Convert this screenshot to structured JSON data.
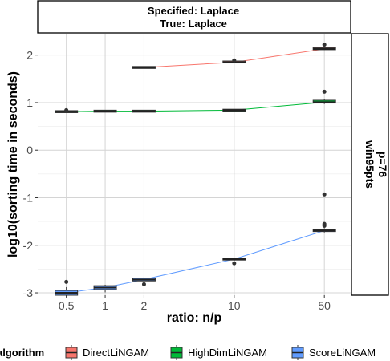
{
  "chart_data": {
    "type": "boxplot",
    "facet_top": [
      "Specified:  Laplace",
      "True: Laplace"
    ],
    "facet_right": [
      "win95pts",
      "p=76"
    ],
    "xlabel": "ratio: n/p",
    "ylabel": "log10(sorting time in seconds)",
    "x_ticks": [
      "0.5",
      "1",
      "2",
      "10",
      "50"
    ],
    "x_scale": "log",
    "y_ticks": [
      -3,
      -2,
      -1,
      0,
      1,
      2
    ],
    "ylim": [
      -3.05,
      2.45
    ],
    "grid": true,
    "legend": {
      "title": "algorithm",
      "position": "bottom",
      "items": [
        "DirectLiNGAM",
        "HighDimLiNGAM",
        "ScoreLiNGAM"
      ]
    },
    "series": [
      {
        "name": "DirectLiNGAM",
        "color": "#F8766D",
        "boxes": [
          {
            "ratio": 2,
            "q1": 1.73,
            "median": 1.74,
            "q3": 1.75,
            "lo": 1.72,
            "hi": 1.76,
            "outliers": []
          },
          {
            "ratio": 10,
            "q1": 1.84,
            "median": 1.85,
            "q3": 1.87,
            "lo": 1.83,
            "hi": 1.88,
            "outliers": [
              1.89
            ]
          },
          {
            "ratio": 50,
            "q1": 2.12,
            "median": 2.13,
            "q3": 2.15,
            "lo": 2.11,
            "hi": 2.17,
            "outliers": [
              2.22
            ]
          }
        ]
      },
      {
        "name": "HighDimLiNGAM",
        "color": "#00BA38",
        "boxes": [
          {
            "ratio": 0.5,
            "q1": 0.8,
            "median": 0.81,
            "q3": 0.82,
            "lo": 0.79,
            "hi": 0.83,
            "outliers": [
              0.84
            ]
          },
          {
            "ratio": 1,
            "q1": 0.81,
            "median": 0.82,
            "q3": 0.83,
            "lo": 0.8,
            "hi": 0.84,
            "outliers": []
          },
          {
            "ratio": 2,
            "q1": 0.81,
            "median": 0.82,
            "q3": 0.83,
            "lo": 0.8,
            "hi": 0.84,
            "outliers": []
          },
          {
            "ratio": 10,
            "q1": 0.83,
            "median": 0.84,
            "q3": 0.85,
            "lo": 0.82,
            "hi": 0.86,
            "outliers": []
          },
          {
            "ratio": 50,
            "q1": 0.99,
            "median": 1.01,
            "q3": 1.05,
            "lo": 0.97,
            "hi": 1.08,
            "outliers": [
              1.23
            ]
          }
        ]
      },
      {
        "name": "ScoreLiNGAM",
        "color": "#619CFF",
        "boxes": [
          {
            "ratio": 0.5,
            "q1": -3.05,
            "median": -3.0,
            "q3": -2.95,
            "lo": -3.08,
            "hi": -2.88,
            "outliers": [
              -2.77
            ]
          },
          {
            "ratio": 1,
            "q1": -2.93,
            "median": -2.89,
            "q3": -2.85,
            "lo": -2.99,
            "hi": -2.83,
            "outliers": []
          },
          {
            "ratio": 2,
            "q1": -2.75,
            "median": -2.72,
            "q3": -2.69,
            "lo": -2.78,
            "hi": -2.67,
            "outliers": [
              -2.82
            ]
          },
          {
            "ratio": 10,
            "q1": -2.31,
            "median": -2.29,
            "q3": -2.27,
            "lo": -2.33,
            "hi": -2.26,
            "outliers": [
              -2.38
            ]
          },
          {
            "ratio": 50,
            "q1": -1.71,
            "median": -1.69,
            "q3": -1.67,
            "lo": -1.73,
            "hi": -1.64,
            "outliers": [
              -1.59,
              -1.55,
              -0.93
            ]
          }
        ]
      }
    ],
    "trend_lines": [
      {
        "name": "DirectLiNGAM",
        "points": [
          [
            2,
            1.74
          ],
          [
            10,
            1.85
          ],
          [
            50,
            2.13
          ]
        ]
      },
      {
        "name": "HighDimLiNGAM",
        "points": [
          [
            0.5,
            0.81
          ],
          [
            1,
            0.82
          ],
          [
            2,
            0.82
          ],
          [
            10,
            0.84
          ],
          [
            50,
            1.01
          ]
        ]
      },
      {
        "name": "ScoreLiNGAM",
        "points": [
          [
            0.5,
            -3.0
          ],
          [
            1,
            -2.89
          ],
          [
            2,
            -2.72
          ],
          [
            10,
            -2.29
          ],
          [
            50,
            -1.69
          ]
        ]
      }
    ]
  }
}
